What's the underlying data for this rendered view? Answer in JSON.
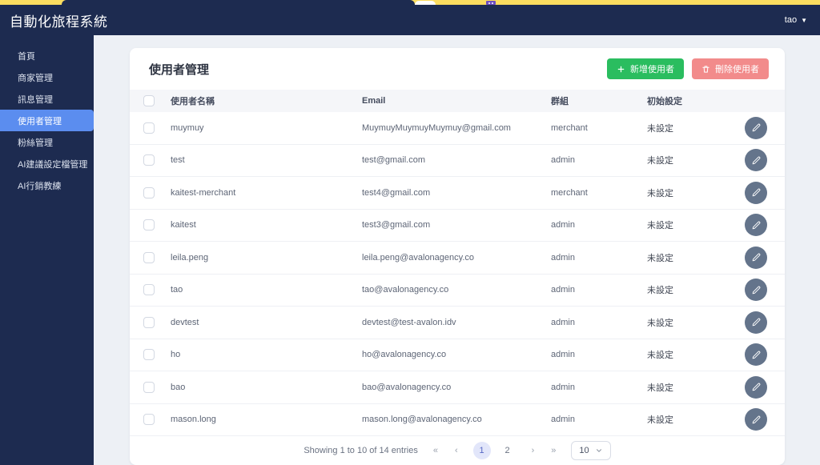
{
  "topbar": {
    "title": "自動化旅程系統",
    "user": "tao",
    "caret": "▼"
  },
  "sidebar": {
    "items": [
      {
        "label": "首頁",
        "active": false
      },
      {
        "label": "商家管理",
        "active": false
      },
      {
        "label": "訊息管理",
        "active": false
      },
      {
        "label": "使用者管理",
        "active": true
      },
      {
        "label": "粉絲管理",
        "active": false
      },
      {
        "label": "AI建議設定檔管理",
        "active": false
      },
      {
        "label": "AI行銷教練",
        "active": false
      }
    ]
  },
  "page": {
    "title": "使用者管理",
    "buttons": {
      "add": "新增使用者",
      "delete": "刪除使用者"
    },
    "table": {
      "columns": [
        "使用者名稱",
        "Email",
        "群組",
        "初始設定"
      ],
      "rows": [
        {
          "name": "muymuy",
          "email": "MuymuyMuymuyMuymuy@gmail.com",
          "group": "merchant",
          "initial": "未設定"
        },
        {
          "name": "test",
          "email": "test@gmail.com",
          "group": "admin",
          "initial": "未設定"
        },
        {
          "name": "kaitest-merchant",
          "email": "test4@gmail.com",
          "group": "merchant",
          "initial": "未設定"
        },
        {
          "name": "kaitest",
          "email": "test3@gmail.com",
          "group": "admin",
          "initial": "未設定"
        },
        {
          "name": "leila.peng",
          "email": "leila.peng@avalonagency.co",
          "group": "admin",
          "initial": "未設定"
        },
        {
          "name": "tao",
          "email": "tao@avalonagency.co",
          "group": "admin",
          "initial": "未設定"
        },
        {
          "name": "devtest",
          "email": "devtest@test-avalon.idv",
          "group": "admin",
          "initial": "未設定"
        },
        {
          "name": "ho",
          "email": "ho@avalonagency.co",
          "group": "admin",
          "initial": "未設定"
        },
        {
          "name": "bao",
          "email": "bao@avalonagency.co",
          "group": "admin",
          "initial": "未設定"
        },
        {
          "name": "mason.long",
          "email": "mason.long@avalonagency.co",
          "group": "admin",
          "initial": "未設定"
        }
      ]
    },
    "pagination": {
      "summary": "Showing 1 to 10 of 14 entries",
      "first": "«",
      "prev": "‹",
      "next": "›",
      "last": "»",
      "pages": [
        "1",
        "2"
      ],
      "active_page": "1",
      "page_size": "10"
    }
  },
  "colors": {
    "navy": "#1d2b50",
    "browser_strip_yellow": "#fbdd60",
    "active_item_blue": "#5b8def",
    "add_button_green": "#2abd5f",
    "delete_button_salmon": "#f28b8b",
    "edit_button_slate": "#64748b",
    "active_page_bg": "#e2e6fa",
    "active_page_text": "#5667c4",
    "main_background": "#edf0f5"
  }
}
